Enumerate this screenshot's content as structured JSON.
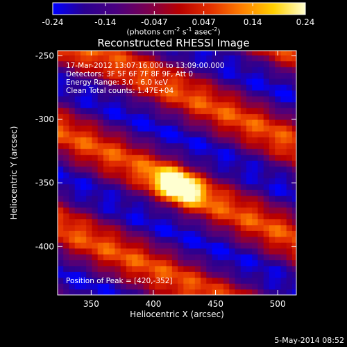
{
  "colorbar": {
    "ticks": [
      "-0.24",
      "-0.14",
      "-0.047",
      "0.047",
      "0.14",
      "0.24"
    ],
    "range": [
      -0.24,
      0.24
    ],
    "units_prefix": "(photons cm",
    "units_exp1": "-2",
    "units_mid": " s",
    "units_exp2": "-1",
    "units_mid2": " asec",
    "units_exp3": "-2",
    "units_suffix": ")"
  },
  "chart_data": {
    "type": "heatmap",
    "title": "Reconstructed RHESSI Image",
    "xlabel": "Heliocentric X (arcsec)",
    "ylabel": "Heliocentric Y (arcsec)",
    "xlim": [
      323,
      515
    ],
    "ylim": [
      -438,
      -246
    ],
    "xticks": [
      350,
      400,
      450,
      500
    ],
    "yticks": [
      -250,
      -300,
      -350,
      -400
    ],
    "xtick_labels": [
      "350",
      "400",
      "450",
      "500"
    ],
    "ytick_labels": [
      "-250",
      "-300",
      "-350",
      "-400"
    ],
    "peak": [
      420,
      -352
    ],
    "info_lines": [
      "17-Mar-2012 13:07:16.000 to 13:09:00.000",
      "Detectors: 3F 5F 6F 7F 8F 9F, Att 0",
      "Energy Range: 3.0 - 6.0 keV",
      "Clean     Total counts: 1.47E+04"
    ],
    "peak_text": "Position of Peak = [420,-352]",
    "colormap": [
      "#0000ff",
      "#2a0090",
      "#4a0080",
      "#7a0050",
      "#b80000",
      "#e33000",
      "#ff8000",
      "#ffd000",
      "#ffffd0"
    ]
  },
  "footer": {
    "date": "5-May-2014 08:52"
  }
}
